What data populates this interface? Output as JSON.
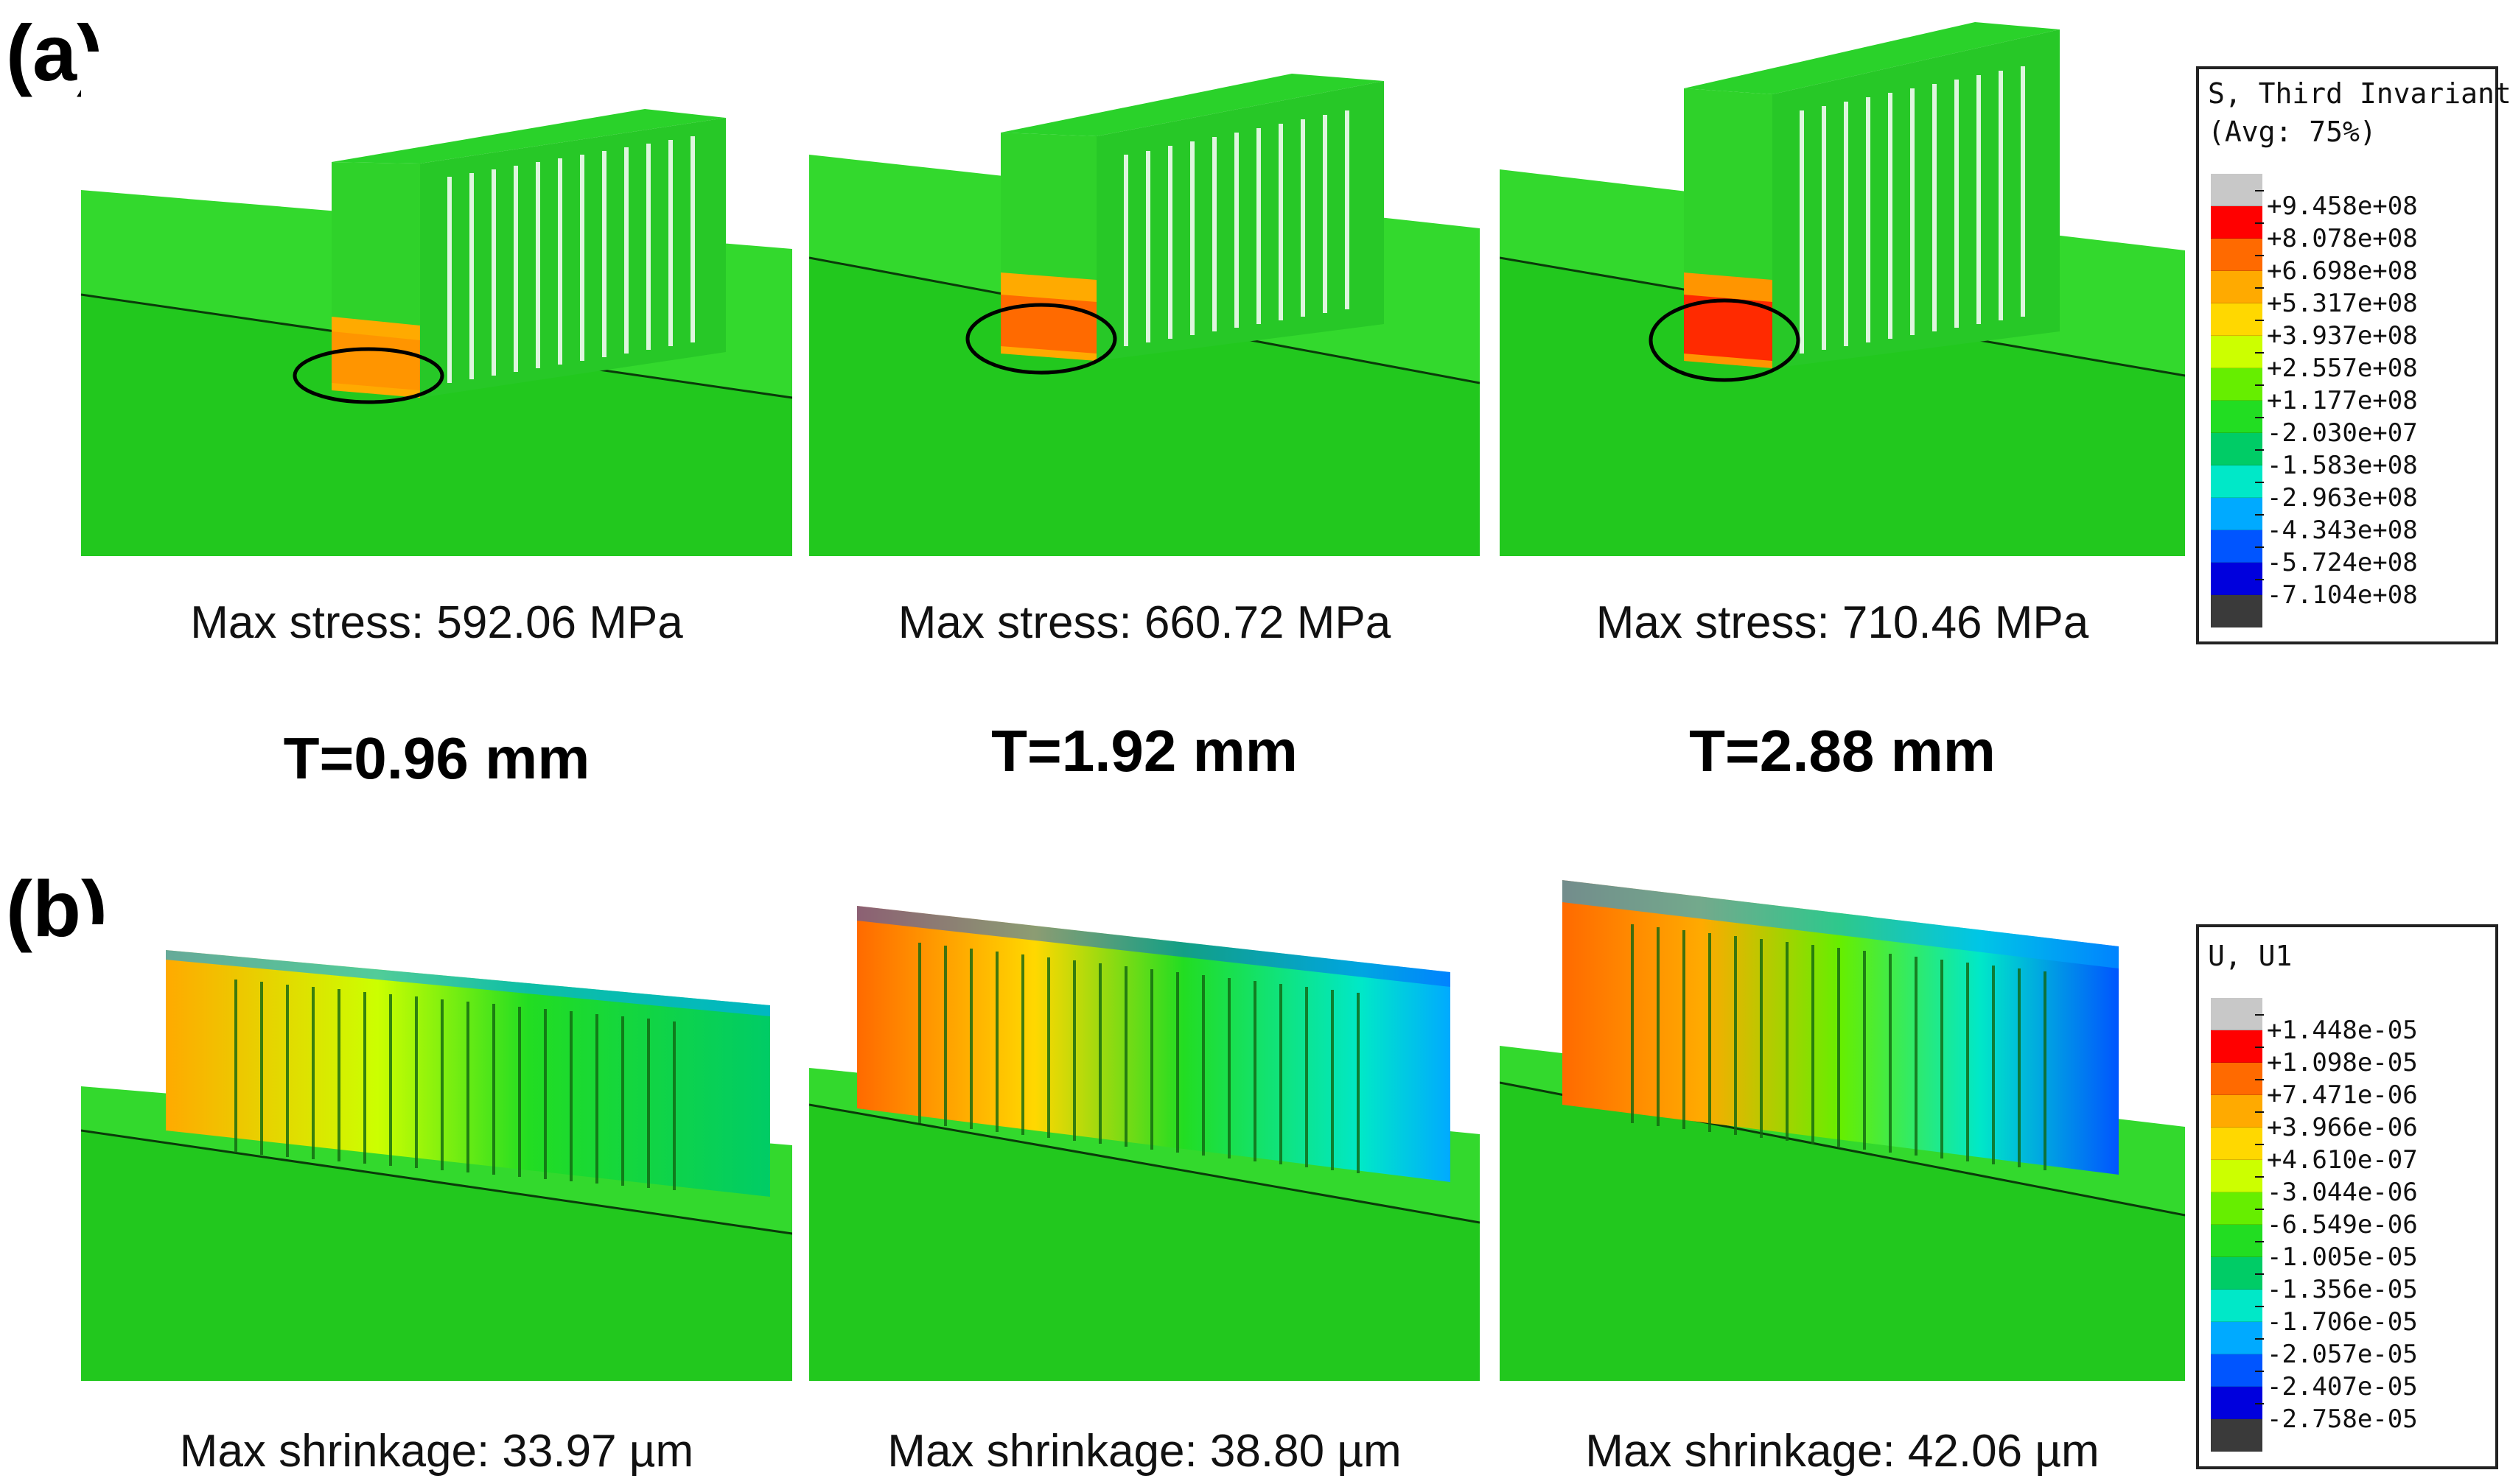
{
  "panels": {
    "a": {
      "label": "(a)",
      "captions": [
        "Max stress: 592.06 MPa",
        "Max stress: 660.72 MPa",
        "Max stress: 710.46 MPa"
      ],
      "thickness": [
        "T=0.96 mm",
        "T=1.92 mm",
        "T=2.88 mm"
      ],
      "legend": {
        "title_line1": "S, Third Invariant",
        "title_line2": "(Avg: 75%)",
        "colors": [
          "#c8c8c8",
          "#ff0000",
          "#ff6a00",
          "#ffaa00",
          "#ffd800",
          "#ccff00",
          "#66ee00",
          "#22dd22",
          "#00cc66",
          "#00e8c8",
          "#00aaff",
          "#0055ff",
          "#0000dd",
          "#3a3a3a"
        ],
        "values": [
          "+9.458e+08",
          "+8.078e+08",
          "+6.698e+08",
          "+5.317e+08",
          "+3.937e+08",
          "+2.557e+08",
          "+1.177e+08",
          "-2.030e+07",
          "-1.583e+08",
          "-2.963e+08",
          "-4.343e+08",
          "-5.724e+08",
          "-7.104e+08"
        ]
      }
    },
    "b": {
      "label": "(b)",
      "captions": [
        "Max shrinkage: 33.97 µm",
        "Max shrinkage: 38.80 µm",
        "Max shrinkage: 42.06 µm"
      ],
      "legend": {
        "title_line1": "U, U1",
        "title_line2": "",
        "colors": [
          "#c8c8c8",
          "#ff0000",
          "#ff6a00",
          "#ffaa00",
          "#ffd800",
          "#ccff00",
          "#66ee00",
          "#22dd22",
          "#00cc66",
          "#00e8c8",
          "#00aaff",
          "#0055ff",
          "#0000dd",
          "#3a3a3a"
        ],
        "values": [
          "+1.448e-05",
          "+1.098e-05",
          "+7.471e-06",
          "+3.966e-06",
          "+4.610e-07",
          "-3.044e-06",
          "-6.549e-06",
          "-1.005e-05",
          "-1.356e-05",
          "-1.706e-05",
          "-2.057e-05",
          "-2.407e-05",
          "-2.758e-05"
        ]
      }
    }
  }
}
